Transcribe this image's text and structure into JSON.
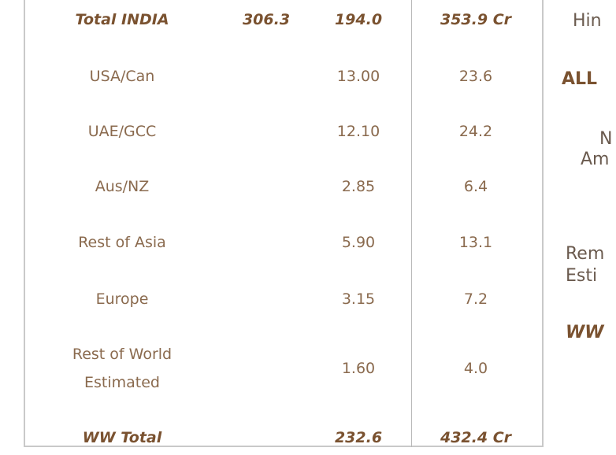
{
  "table": {
    "rows": [
      {
        "region": "Total INDIA",
        "india": "306.3",
        "overseas": "194.0",
        "total": "353.9 Cr"
      },
      {
        "region": "USA/Can",
        "overseas": "13.00",
        "total": "23.6"
      },
      {
        "region": "UAE/GCC",
        "overseas": "12.10",
        "total": "24.2"
      },
      {
        "region": "Aus/NZ",
        "overseas": "2.85",
        "total": "6.4"
      },
      {
        "region": "Rest of Asia",
        "overseas": "5.90",
        "total": "13.1"
      },
      {
        "region": "Europe",
        "overseas": "3.15",
        "total": "7.2"
      },
      {
        "region": "Rest of World Estimated",
        "overseas": "1.60",
        "total": "4.0"
      },
      {
        "region": "WW Total",
        "overseas": "232.6",
        "total": "432.4 Cr"
      }
    ]
  },
  "side_text": [
    "Hin",
    "ALL",
    "N",
    "Am",
    "Rem",
    "Esti",
    "WW"
  ]
}
